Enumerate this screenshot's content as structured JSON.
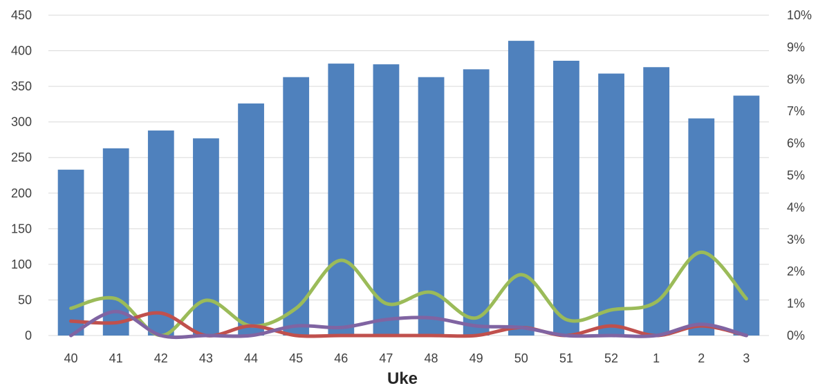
{
  "chart_data": {
    "type": "bar",
    "xlabel": "Uke",
    "categories": [
      "40",
      "41",
      "42",
      "43",
      "44",
      "45",
      "46",
      "47",
      "48",
      "49",
      "50",
      "51",
      "52",
      "1",
      "2",
      "3"
    ],
    "bar_series": {
      "values": [
        233,
        263,
        288,
        277,
        326,
        363,
        382,
        381,
        363,
        374,
        414,
        386,
        368,
        377,
        305,
        337
      ],
      "color": "#4f81bd"
    },
    "line_series": [
      {
        "values": [
          0.85,
          1.15,
          0.0,
          1.1,
          0.3,
          0.85,
          2.35,
          1.0,
          1.35,
          0.55,
          1.9,
          0.5,
          0.8,
          1.05,
          2.6,
          1.15
        ],
        "color": "#9bbb59"
      },
      {
        "values": [
          0.45,
          0.4,
          0.7,
          0.0,
          0.3,
          0.0,
          0.0,
          0.0,
          0.0,
          0.0,
          0.25,
          0.0,
          0.3,
          0.0,
          0.3,
          0.0
        ],
        "color": "#c0504d"
      },
      {
        "values": [
          0.0,
          0.75,
          0.0,
          0.0,
          0.0,
          0.3,
          0.25,
          0.5,
          0.55,
          0.3,
          0.25,
          0.0,
          0.0,
          0.0,
          0.35,
          0.0
        ],
        "color": "#8064a2"
      }
    ],
    "y_left": {
      "min": 0,
      "max": 450,
      "step": 50,
      "ticks": [
        "0",
        "50",
        "100",
        "150",
        "200",
        "250",
        "300",
        "350",
        "400",
        "450"
      ]
    },
    "y_right": {
      "min": 0,
      "max": 10,
      "step": 1,
      "unit": "%",
      "ticks": [
        "0%",
        "1%",
        "2%",
        "3%",
        "4%",
        "5%",
        "6%",
        "7%",
        "8%",
        "9%",
        "10%"
      ]
    },
    "grid": true,
    "legend": "none"
  }
}
